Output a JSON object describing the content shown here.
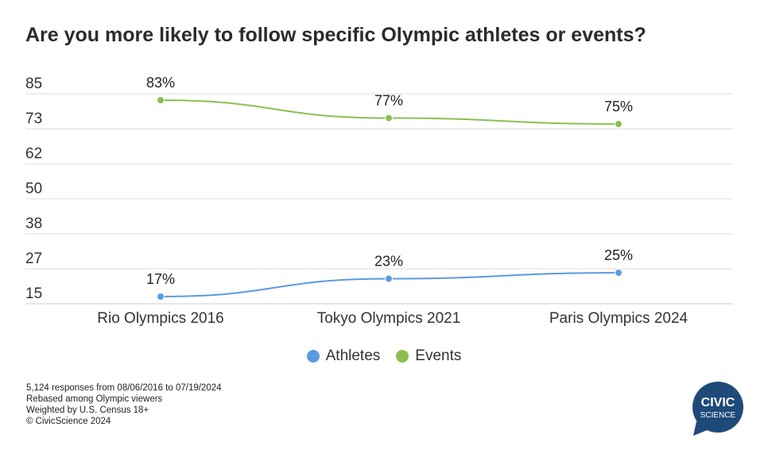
{
  "title": "Are you more likely to follow specific Olympic athletes or events?",
  "colors": {
    "athletes": "#5b9be0",
    "events": "#8cbf4f",
    "logo": "#1e4a7a",
    "grid": "#dddddd"
  },
  "chart_data": {
    "type": "line",
    "categories": [
      "Rio Olympics 2016",
      "Tokyo Olympics 2021",
      "Paris Olympics 2024"
    ],
    "series": [
      {
        "name": "Athletes",
        "values": [
          17,
          23,
          25
        ],
        "labels": [
          "17%",
          "23%",
          "25%"
        ],
        "color": "#5b9be0"
      },
      {
        "name": "Events",
        "values": [
          83,
          77,
          75
        ],
        "labels": [
          "83%",
          "77%",
          "75%"
        ],
        "color": "#8cbf4f"
      }
    ],
    "yticks": [
      "85",
      "73",
      "62",
      "50",
      "38",
      "27",
      "15"
    ],
    "ylim": [
      11,
      87
    ],
    "grid": true,
    "legend_position": "bottom"
  },
  "legend": [
    {
      "label": "Athletes",
      "color": "#5b9be0"
    },
    {
      "label": "Events",
      "color": "#8cbf4f"
    }
  ],
  "footnotes": [
    "5,124 responses from 08/06/2016 to 07/19/2024",
    "Rebased among Olympic viewers",
    "Weighted by U.S. Census 18+",
    "© CivicScience 2024"
  ],
  "logo": {
    "line1": "CIVIC",
    "line2": "SCIENCE"
  }
}
